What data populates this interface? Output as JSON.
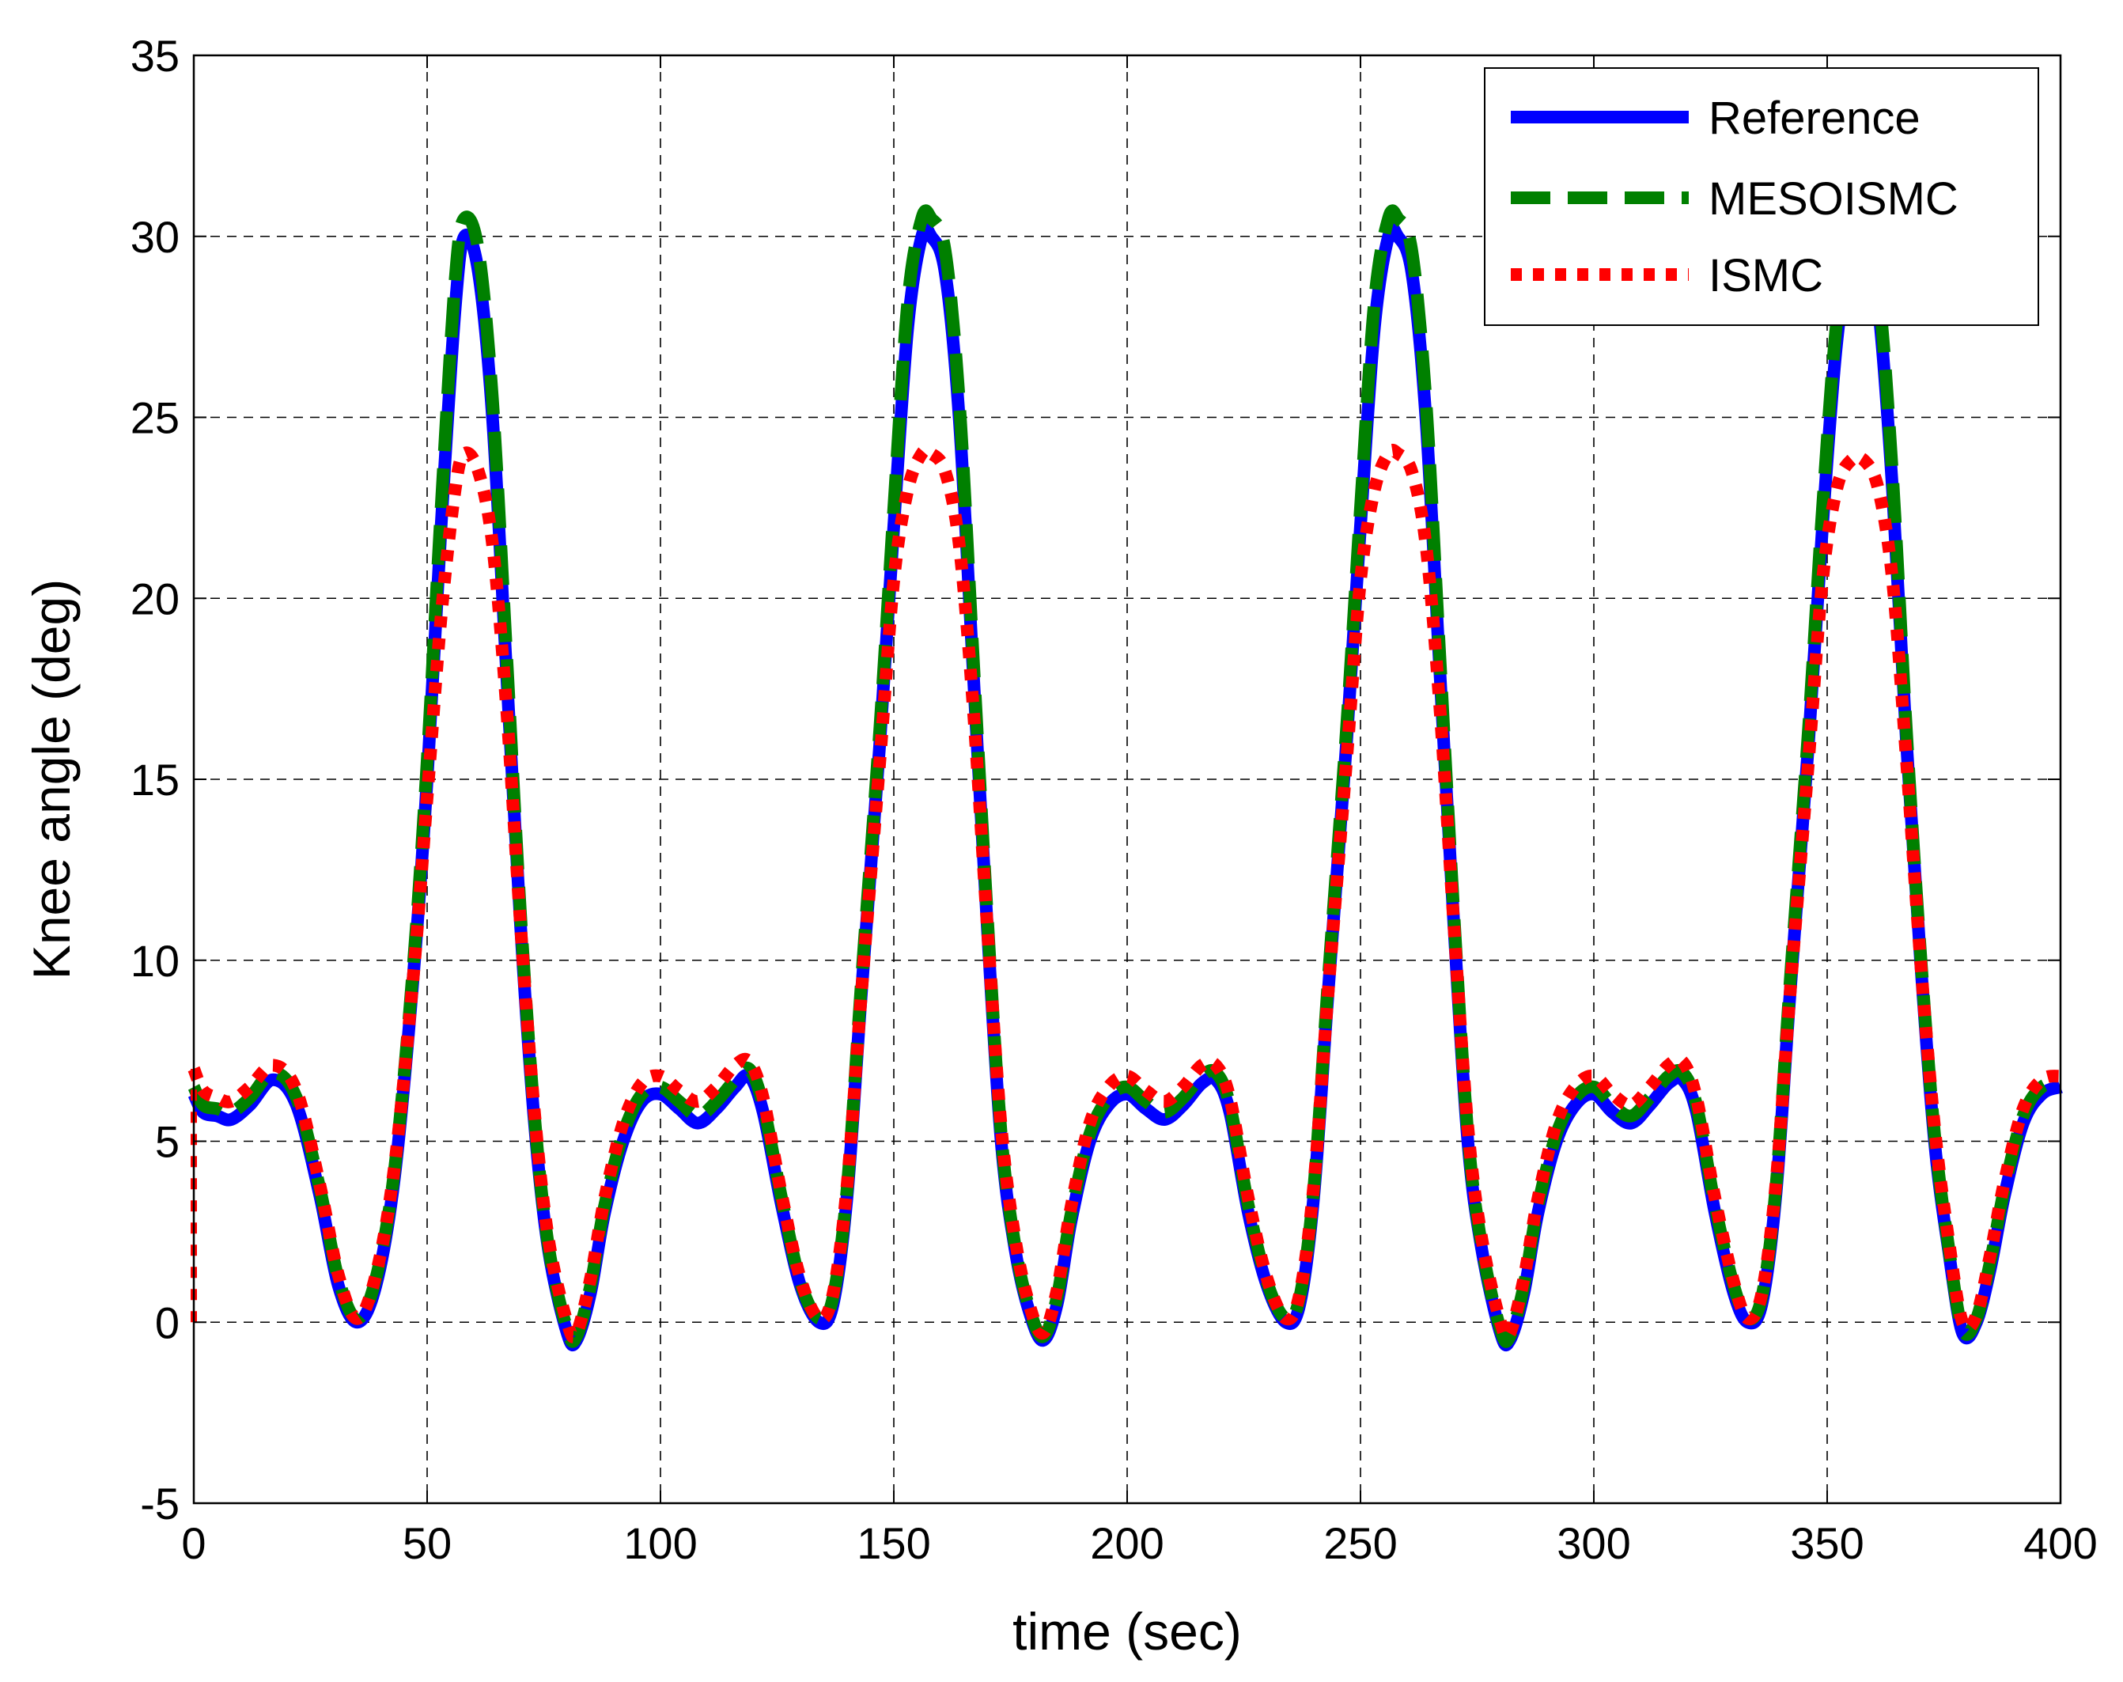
{
  "chart_data": {
    "type": "line",
    "xlabel": "time (sec)",
    "ylabel": "Knee angle (deg)",
    "xlim": [
      0,
      400
    ],
    "ylim": [
      -5,
      35
    ],
    "xticks": [
      "0",
      "50",
      "100",
      "150",
      "200",
      "250",
      "300",
      "350",
      "400"
    ],
    "yticks": [
      "-5",
      "0",
      "5",
      "10",
      "15",
      "20",
      "25",
      "30",
      "35"
    ],
    "grid": true,
    "legend_position": "top-right",
    "x": [
      0,
      2,
      5,
      8,
      12,
      17,
      22,
      27,
      31,
      35,
      39,
      43,
      47,
      50,
      53,
      56,
      58,
      61,
      64,
      67,
      70,
      73,
      76,
      80,
      82,
      85,
      88,
      92,
      96,
      100,
      104,
      108,
      112,
      116,
      119,
      122,
      126,
      130,
      134,
      137,
      140,
      143,
      147,
      150,
      153,
      156,
      158,
      161,
      164,
      167,
      170,
      173,
      176,
      179,
      182,
      185,
      188,
      192,
      196,
      200,
      204,
      208,
      212,
      216,
      219,
      222,
      226,
      230,
      234,
      237,
      240,
      243,
      247,
      250,
      253,
      256,
      258,
      261,
      264,
      267,
      270,
      273,
      276,
      280,
      282,
      285,
      288,
      292,
      296,
      300,
      304,
      308,
      312,
      316,
      319,
      322,
      326,
      330,
      333,
      336,
      339,
      342,
      346,
      349,
      352,
      355,
      358,
      361,
      364,
      367,
      370,
      373,
      376,
      379,
      382,
      385,
      388,
      392,
      396,
      400
    ],
    "series": [
      {
        "name": "Reference",
        "color": "#0000ff",
        "style": "solid",
        "values": [
          6.3,
          5.8,
          5.7,
          5.6,
          6.0,
          6.7,
          6.0,
          3.5,
          1.0,
          0.0,
          1.0,
          4.0,
          9.5,
          15.0,
          22.0,
          28.0,
          30.0,
          29.0,
          25.0,
          18.0,
          11.0,
          5.5,
          2.0,
          -0.3,
          -0.5,
          0.8,
          3.0,
          5.0,
          6.1,
          6.3,
          5.9,
          5.5,
          5.9,
          6.5,
          6.8,
          5.8,
          3.2,
          1.0,
          0.0,
          0.5,
          3.5,
          9.0,
          16.0,
          22.0,
          27.5,
          30.0,
          30.0,
          29.0,
          25.0,
          18.0,
          11.0,
          5.0,
          2.0,
          0.3,
          -0.5,
          0.5,
          2.8,
          5.0,
          6.0,
          6.3,
          5.9,
          5.6,
          6.0,
          6.6,
          6.7,
          5.8,
          3.0,
          1.0,
          0.0,
          0.5,
          3.5,
          9.0,
          16.0,
          22.0,
          27.5,
          30.0,
          30.0,
          29.0,
          25.0,
          18.0,
          11.0,
          5.0,
          2.0,
          -0.3,
          -0.5,
          0.8,
          3.0,
          5.0,
          6.0,
          6.3,
          5.8,
          5.5,
          6.0,
          6.6,
          6.7,
          5.8,
          3.0,
          0.8,
          0.0,
          0.5,
          3.5,
          9.0,
          16.0,
          22.0,
          27.0,
          29.5,
          29.5,
          28.0,
          23.0,
          16.0,
          10.0,
          5.0,
          2.0,
          -0.3,
          0.0,
          1.5,
          3.5,
          5.5,
          6.3,
          6.5
        ]
      },
      {
        "name": "MESOISMC",
        "color": "#008000",
        "style": "dashed",
        "values": [
          6.5,
          6.0,
          5.9,
          5.8,
          6.2,
          6.9,
          6.2,
          3.7,
          1.2,
          0.1,
          1.2,
          4.2,
          9.8,
          15.5,
          22.5,
          28.8,
          30.5,
          29.6,
          25.5,
          18.5,
          11.3,
          5.7,
          2.1,
          -0.2,
          -0.4,
          1.0,
          3.2,
          5.2,
          6.3,
          6.5,
          6.1,
          5.7,
          6.1,
          6.7,
          7.0,
          6.0,
          3.4,
          1.1,
          0.1,
          0.7,
          3.7,
          9.3,
          16.4,
          22.5,
          28.2,
          30.5,
          30.5,
          29.6,
          25.5,
          18.4,
          11.3,
          5.2,
          2.1,
          0.4,
          -0.4,
          0.7,
          3.0,
          5.2,
          6.2,
          6.5,
          6.1,
          5.8,
          6.2,
          6.8,
          6.9,
          6.0,
          3.2,
          1.1,
          0.1,
          0.7,
          3.7,
          9.3,
          16.4,
          22.5,
          28.2,
          30.5,
          30.5,
          29.6,
          25.5,
          18.4,
          11.3,
          5.2,
          2.1,
          -0.2,
          -0.4,
          1.0,
          3.2,
          5.2,
          6.2,
          6.5,
          6.0,
          5.7,
          6.2,
          6.8,
          6.9,
          6.0,
          3.2,
          1.0,
          0.1,
          0.7,
          3.7,
          9.3,
          16.4,
          22.5,
          27.6,
          30.0,
          30.0,
          28.5,
          23.4,
          16.3,
          10.2,
          5.2,
          2.1,
          -0.2,
          0.1,
          1.7,
          3.7,
          5.7,
          6.5,
          6.6
        ]
      },
      {
        "name": "ISMC",
        "color": "#ff0000",
        "style": "dotted",
        "values": [
          7.0,
          6.4,
          6.2,
          6.1,
          6.5,
          7.1,
          6.4,
          3.8,
          1.3,
          0.1,
          1.3,
          4.3,
          9.5,
          14.5,
          19.5,
          23.0,
          24.0,
          23.5,
          21.5,
          17.0,
          11.0,
          5.8,
          2.3,
          0.0,
          -0.3,
          1.2,
          3.4,
          5.5,
          6.6,
          6.8,
          6.4,
          6.1,
          6.5,
          7.1,
          7.2,
          6.2,
          3.5,
          1.2,
          0.1,
          0.8,
          3.8,
          9.0,
          15.5,
          20.5,
          23.0,
          24.0,
          24.0,
          23.5,
          21.5,
          17.0,
          11.0,
          5.4,
          2.3,
          0.5,
          -0.3,
          0.9,
          3.2,
          5.5,
          6.5,
          6.8,
          6.4,
          6.1,
          6.5,
          7.1,
          7.1,
          6.2,
          3.4,
          1.2,
          0.1,
          0.8,
          3.8,
          9.0,
          15.5,
          20.5,
          23.0,
          24.0,
          24.0,
          23.5,
          21.5,
          17.0,
          11.0,
          5.4,
          2.3,
          0.0,
          -0.3,
          1.2,
          3.4,
          5.5,
          6.5,
          6.8,
          6.3,
          6.0,
          6.5,
          7.1,
          7.2,
          6.2,
          3.4,
          1.1,
          0.1,
          0.8,
          3.8,
          9.0,
          15.5,
          20.5,
          23.0,
          23.8,
          23.8,
          23.0,
          20.5,
          15.5,
          10.0,
          5.4,
          2.3,
          0.0,
          0.2,
          1.9,
          3.9,
          5.9,
          6.7,
          6.8
        ]
      }
    ]
  }
}
